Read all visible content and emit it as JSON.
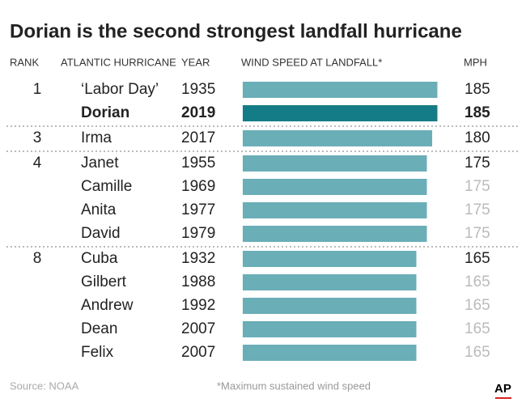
{
  "chart_data": {
    "type": "bar",
    "title": "Dorian is the second strongest landfall hurricane",
    "headers": {
      "rank": "RANK",
      "name": "ATLANTIC HURRICANE",
      "year": "YEAR",
      "bar": "WIND SPEED AT LANDFALL*",
      "value": "MPH"
    },
    "ranks": [
      "1",
      null,
      "3",
      "4",
      null,
      null,
      null,
      "8",
      null,
      null,
      null,
      null
    ],
    "categories": [
      "‘Labor Day’",
      "Dorian",
      "Irma",
      "Janet",
      "Camille",
      "Anita",
      "David",
      "Cuba",
      "Gilbert",
      "Andrew",
      "Dean",
      "Felix"
    ],
    "years": [
      "1935",
      "2019",
      "2017",
      "1955",
      "1969",
      "1977",
      "1979",
      "1932",
      "1988",
      "1992",
      "2007",
      "2007"
    ],
    "values": [
      185,
      185,
      180,
      175,
      175,
      175,
      175,
      165,
      165,
      165,
      165,
      165
    ],
    "color": "#6aaeb8",
    "highlight_color": "#147c86",
    "highlight_index": 1,
    "source": "Source: NOAA",
    "footnote": "*Maximum sustained wind speed",
    "logo": "AP"
  }
}
